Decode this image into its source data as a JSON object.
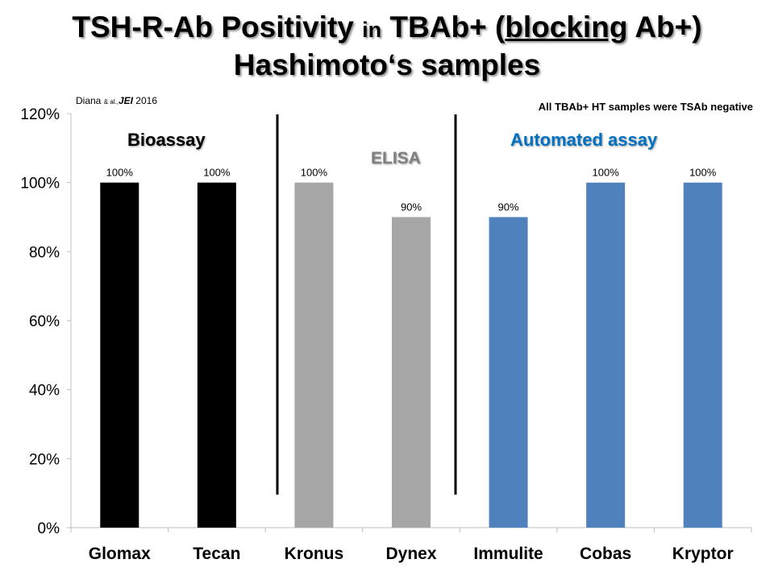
{
  "title": {
    "p1": "TSH-R-Ab Positivity ",
    "p2": "in",
    "p3": " TBAb+ (",
    "p4": "blocking",
    "p5": " Ab+)",
    "line2": "Hashimoto‘s samples"
  },
  "citation": {
    "author": "Diana",
    "etal": "& al.,",
    "journal": "JEI",
    "year": "2016"
  },
  "note": "All TBAb+ HT samples were TSAb negative",
  "groups": [
    {
      "label": "Bioassay",
      "color": "#000000"
    },
    {
      "label": "ELISA",
      "color": "#7f7f7f"
    },
    {
      "label": "Automated assay",
      "color": "#0070c0"
    }
  ],
  "chart_data": {
    "type": "bar",
    "categories": [
      "Glomax",
      "Tecan",
      "Kronus",
      "Dynex",
      "Immulite",
      "Cobas",
      "Kryptor"
    ],
    "values": [
      100,
      100,
      100,
      90,
      90,
      100,
      100
    ],
    "data_labels": [
      "100%",
      "100%",
      "100%",
      "90%",
      "90%",
      "100%",
      "100%"
    ],
    "bar_colors": [
      "#000000",
      "#000000",
      "#a6a6a6",
      "#a6a6a6",
      "#4f81bd",
      "#4f81bd",
      "#4f81bd"
    ],
    "ylim": [
      0,
      120
    ],
    "yticks": [
      "0%",
      "20%",
      "40%",
      "60%",
      "80%",
      "100%",
      "120%"
    ],
    "ytick_values": [
      0,
      20,
      40,
      60,
      80,
      100,
      120
    ],
    "xlabel": "",
    "ylabel": ""
  }
}
